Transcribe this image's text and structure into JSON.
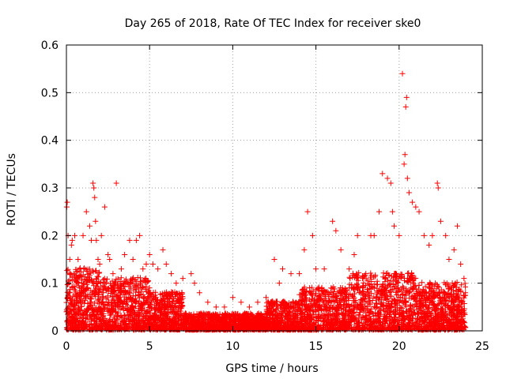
{
  "chart_data": {
    "type": "scatter",
    "title": "Day 265 of 2018, Rate Of TEC Index for receiver ske0",
    "xlabel": "GPS time / hours",
    "ylabel": "ROTI / TECUs",
    "xlim": [
      0,
      25
    ],
    "ylim": [
      0,
      0.6
    ],
    "xticks": [
      0,
      5,
      10,
      15,
      20,
      25
    ],
    "yticks": [
      0,
      0.1,
      0.2,
      0.3,
      0.4,
      0.5,
      0.6
    ],
    "xtick_labels": [
      "0",
      "5",
      "10",
      "15",
      "20",
      "25"
    ],
    "ytick_labels": [
      "0",
      "0.1",
      "0.2",
      "0.3",
      "0.4",
      "0.5",
      "0.6"
    ],
    "grid": true,
    "marker": "+",
    "series": [
      {
        "name": "ROTI",
        "color": "#ff0000",
        "x": [
          0.02,
          0.05,
          0.1,
          0.2,
          0.3,
          0.35,
          0.45,
          0.5,
          0.7,
          0.8,
          1.0,
          1.2,
          1.4,
          1.5,
          1.6,
          1.65,
          1.7,
          1.75,
          1.8,
          1.9,
          2.0,
          2.1,
          2.3,
          2.5,
          2.6,
          2.8,
          3.0,
          3.3,
          3.5,
          3.8,
          4.0,
          4.2,
          4.4,
          4.6,
          4.8,
          5.0,
          5.2,
          5.5,
          5.8,
          6.0,
          6.3,
          6.6,
          7.0,
          7.5,
          7.7,
          8.0,
          8.5,
          9.0,
          9.5,
          10.0,
          10.5,
          11.0,
          11.5,
          12.0,
          12.5,
          12.8,
          13.0,
          13.5,
          14.0,
          14.3,
          14.5,
          14.8,
          15.0,
          15.5,
          16.0,
          16.2,
          16.5,
          17.0,
          17.3,
          17.5,
          17.8,
          18.0,
          18.3,
          18.5,
          18.8,
          19.0,
          19.3,
          19.5,
          19.6,
          19.7,
          20.0,
          20.2,
          20.3,
          20.35,
          20.4,
          20.45,
          20.5,
          20.6,
          20.8,
          21.0,
          21.2,
          21.5,
          21.8,
          22.0,
          22.3,
          22.35,
          22.5,
          22.8,
          23.0,
          23.3,
          23.5,
          23.7,
          23.9
        ],
        "y": [
          0.26,
          0.27,
          0.2,
          0.15,
          0.18,
          0.19,
          0.12,
          0.2,
          0.15,
          0.13,
          0.2,
          0.25,
          0.22,
          0.19,
          0.31,
          0.3,
          0.28,
          0.23,
          0.19,
          0.15,
          0.14,
          0.2,
          0.26,
          0.16,
          0.15,
          0.12,
          0.31,
          0.13,
          0.16,
          0.19,
          0.15,
          0.19,
          0.2,
          0.13,
          0.14,
          0.16,
          0.14,
          0.13,
          0.17,
          0.14,
          0.12,
          0.1,
          0.11,
          0.12,
          0.1,
          0.08,
          0.06,
          0.05,
          0.05,
          0.07,
          0.06,
          0.05,
          0.06,
          0.07,
          0.15,
          0.1,
          0.13,
          0.12,
          0.12,
          0.17,
          0.25,
          0.2,
          0.13,
          0.13,
          0.23,
          0.21,
          0.17,
          0.13,
          0.16,
          0.2,
          0.11,
          0.12,
          0.2,
          0.2,
          0.25,
          0.33,
          0.32,
          0.31,
          0.25,
          0.22,
          0.2,
          0.54,
          0.35,
          0.37,
          0.47,
          0.49,
          0.32,
          0.29,
          0.27,
          0.26,
          0.25,
          0.2,
          0.18,
          0.2,
          0.31,
          0.3,
          0.23,
          0.2,
          0.15,
          0.17,
          0.22,
          0.14,
          0.11
        ]
      }
    ]
  }
}
